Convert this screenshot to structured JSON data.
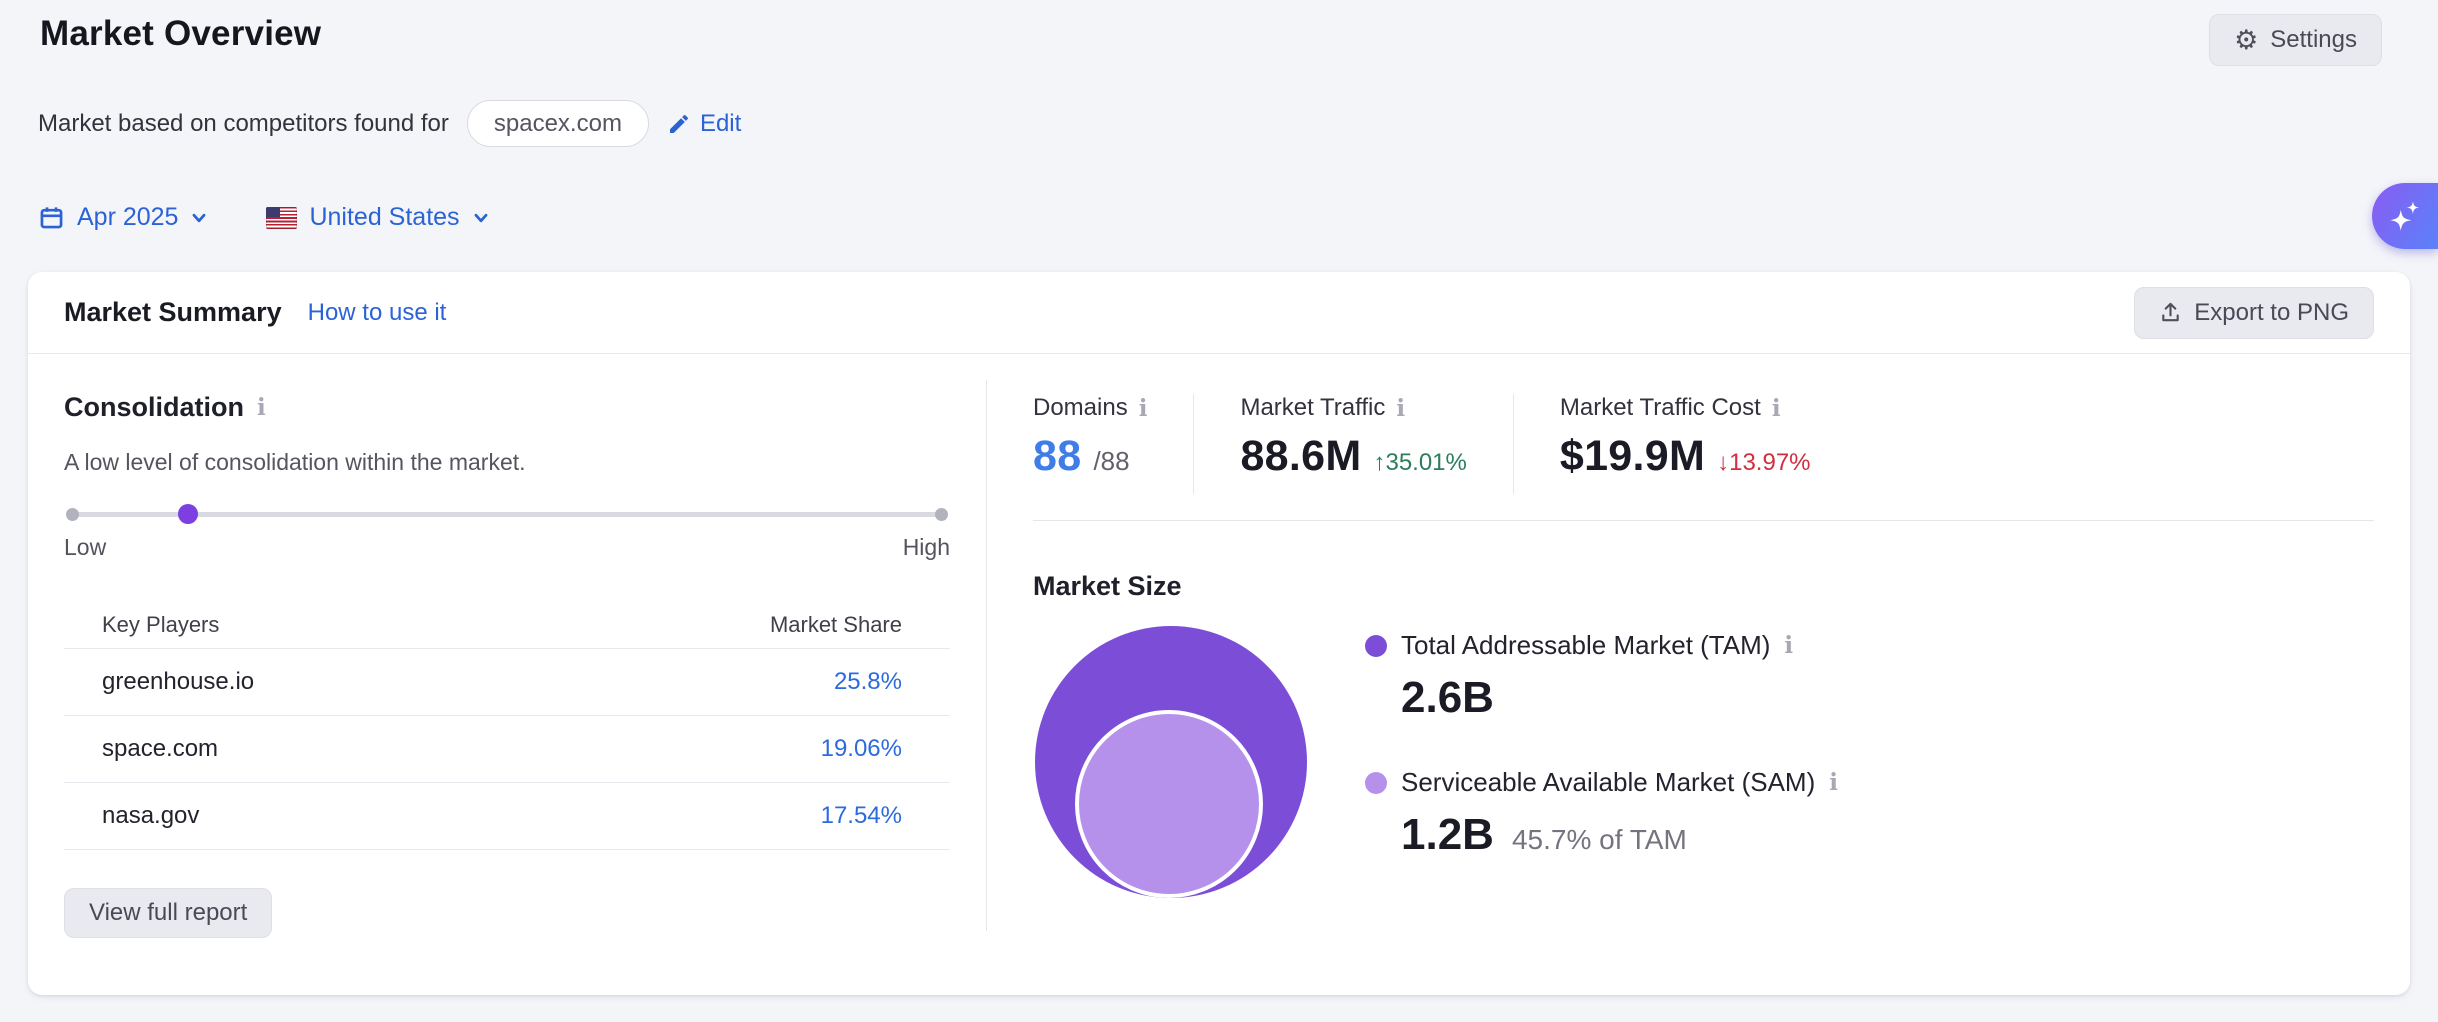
{
  "page": {
    "title": "Market Overview",
    "subtitle_prefix": "Market based on competitors found for",
    "domain_pill": "spacex.com",
    "edit_label": "Edit",
    "settings_label": "Settings",
    "date_selector": "Apr 2025",
    "country_selector": "United States"
  },
  "card": {
    "title": "Market Summary",
    "help_link": "How to use it",
    "export_label": "Export to PNG"
  },
  "consolidation": {
    "title": "Consolidation",
    "description": "A low level of consolidation within the market.",
    "slider_low": "Low",
    "slider_high": "High",
    "slider_value_pct": 14,
    "table": {
      "col_players": "Key Players",
      "col_share": "Market Share",
      "rows": [
        {
          "domain": "greenhouse.io",
          "share": "25.8%"
        },
        {
          "domain": "space.com",
          "share": "19.06%"
        },
        {
          "domain": "nasa.gov",
          "share": "17.54%"
        }
      ]
    },
    "view_report_label": "View full report"
  },
  "stats": {
    "domains": {
      "label": "Domains",
      "value": "88",
      "total": "/88"
    },
    "traffic": {
      "label": "Market Traffic",
      "value": "88.6M",
      "change": "↑35.01%"
    },
    "cost": {
      "label": "Market Traffic Cost",
      "value": "$19.9M",
      "change": "↓13.97%"
    }
  },
  "market_size": {
    "title": "Market Size",
    "tam": {
      "label": "Total Addressable Market (TAM)",
      "value": "2.6B"
    },
    "sam": {
      "label": "Serviceable Available Market (SAM)",
      "value": "1.2B",
      "note": "45.7% of TAM"
    }
  },
  "chart_data": {
    "type": "bubble",
    "title": "Market Size",
    "series": [
      {
        "name": "Total Addressable Market (TAM)",
        "value_label": "2.6B",
        "value": 2600000000
      },
      {
        "name": "Serviceable Available Market (SAM)",
        "value_label": "1.2B",
        "value": 1200000000,
        "percent_of_tam": 45.7
      }
    ],
    "layout": "nested-circles, SAM inside TAM at bottom center, legend right"
  },
  "colors": {
    "link_blue": "#2b63d6",
    "value_blue": "#3f7de8",
    "share_blue": "#2b6bdd",
    "positive_green": "#2e7d5c",
    "negative_red": "#d12e3e",
    "tam_purple": "#7c4ed8",
    "sam_purple": "#b591ec",
    "slider_purple": "#7d3fe1",
    "ai_gradient_start": "#8a5cf3",
    "ai_gradient_end": "#5f7ef8"
  }
}
